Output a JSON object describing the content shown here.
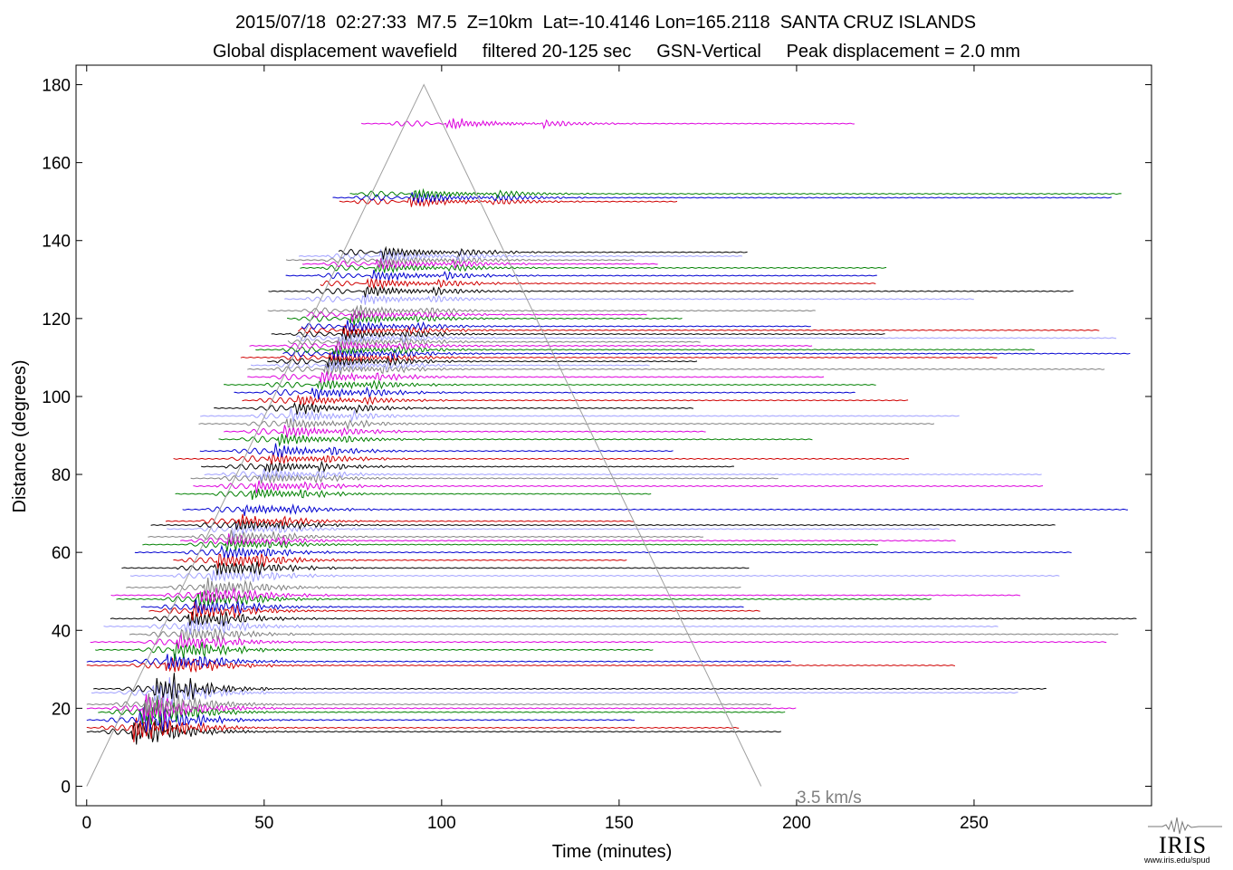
{
  "header": {
    "line1": "2015/07/18  02:27:33  M7.5  Z=10km  Lat=-10.4146 Lon=165.2118  SANTA CRUZ ISLANDS",
    "line2": "Global displacement wavefield     filtered 20-125 sec     GSN-Vertical     Peak displacement = 2.0 mm"
  },
  "chart_data": {
    "type": "line",
    "title": "2015/07/18  02:27:33  M7.5  Z=10km  Lat=-10.4146 Lon=165.2118  SANTA CRUZ ISLANDS",
    "subtitle": "Global displacement wavefield     filtered 20-125 sec     GSN-Vertical     Peak displacement = 2.0 mm",
    "xlabel": "Time (minutes)",
    "ylabel": "Distance (degrees)",
    "xlim": [
      -3,
      300
    ],
    "ylim": [
      -5,
      185
    ],
    "xticks": [
      0,
      50,
      100,
      150,
      200,
      250
    ],
    "yticks": [
      0,
      20,
      40,
      60,
      80,
      100,
      120,
      140,
      160,
      180
    ],
    "grid": false,
    "trace_colors": [
      "#000000",
      "#d00000",
      "#0000d0",
      "#008000",
      "#dd00dd",
      "#808080",
      "#a0a0ff"
    ],
    "trace_distances": [
      14,
      15,
      17,
      19,
      20,
      21,
      24,
      25,
      31,
      32,
      35,
      37,
      39,
      41,
      43,
      45,
      46,
      48,
      49,
      51,
      54,
      56,
      58,
      60,
      62,
      63,
      64,
      66,
      67,
      68,
      71,
      75,
      77,
      79,
      80,
      82,
      84,
      86,
      89,
      91,
      93,
      95,
      97,
      99,
      101,
      103,
      105,
      107,
      108,
      109,
      110,
      111,
      112,
      113,
      114,
      115,
      116,
      117,
      118,
      120,
      121,
      122,
      125,
      127,
      129,
      131,
      133,
      134,
      135,
      136,
      137,
      150,
      151,
      152,
      170
    ],
    "reference_line": {
      "label": "3.5 km/s",
      "speed_km_s": 3.5,
      "points": [
        [
          0,
          0
        ],
        [
          95,
          180
        ],
        [
          190,
          0
        ]
      ]
    }
  },
  "logo": {
    "text": "IRIS",
    "url": "www.iris.edu/spud"
  }
}
